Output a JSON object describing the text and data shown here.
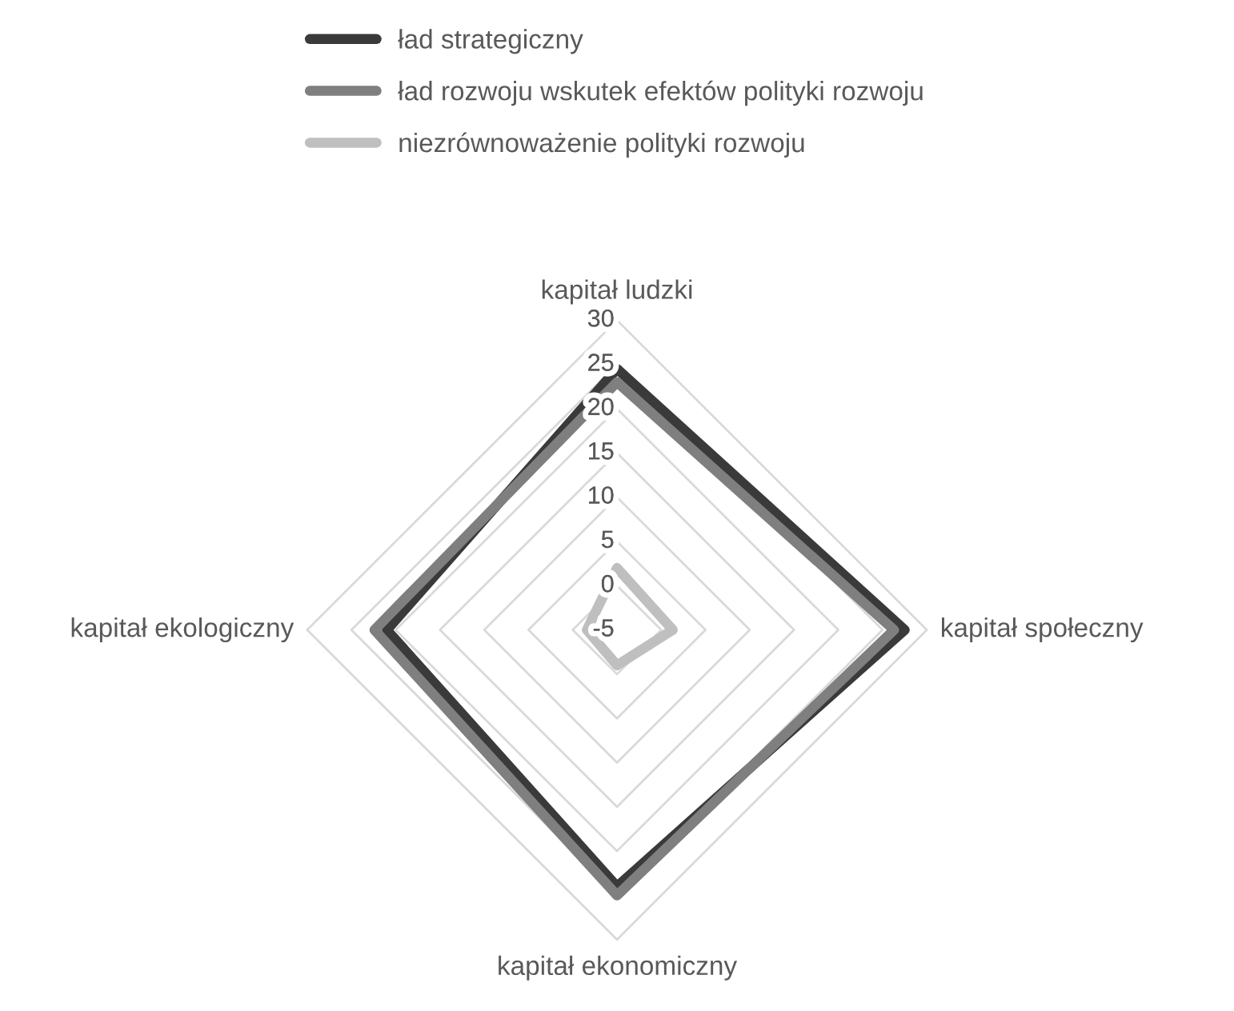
{
  "chart_data": {
    "type": "radar",
    "categories": [
      "kapitał ludzki",
      "kapitał społeczny",
      "kapitał ekonomiczny",
      "kapitał ekologiczny"
    ],
    "series": [
      {
        "name": "ład strategiczny",
        "color": "#3a3a3a",
        "values": [
          24.5,
          27.5,
          24,
          21
        ]
      },
      {
        "name": "ład rozwoju wskutek efektów polityki rozwoju",
        "color": "#7f7f7f",
        "values": [
          23,
          26.3,
          25,
          22.4
        ]
      },
      {
        "name": "niezrównoważenie polityki rozwoju",
        "color": "#bfbfbf",
        "values": [
          2,
          1.3,
          -1,
          -1.6
        ]
      }
    ],
    "ylim": [
      -5,
      30
    ],
    "yticks": [
      -5,
      0,
      5,
      10,
      15,
      20,
      25,
      30
    ],
    "grid": true,
    "legend": "top"
  }
}
